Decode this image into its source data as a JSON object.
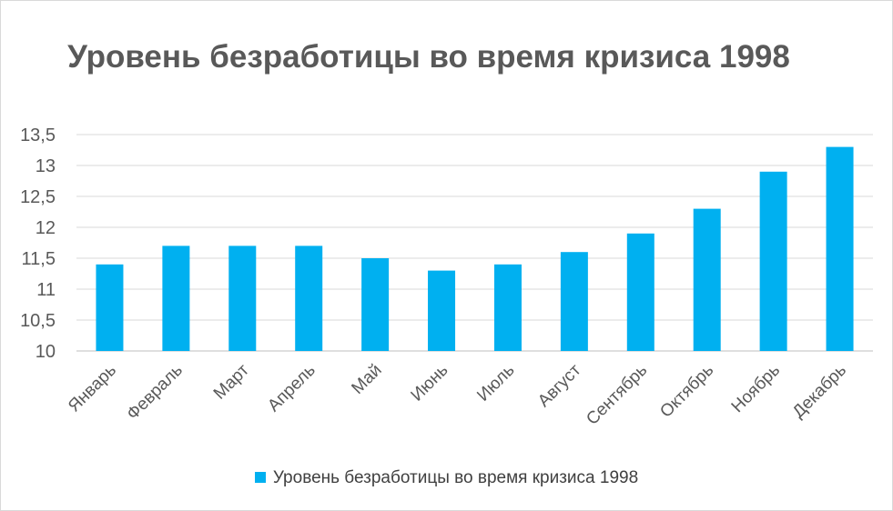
{
  "chart_data": {
    "type": "bar",
    "title": "Уровень безработицы во время кризиса 1998",
    "categories": [
      "Январь",
      "Февраль",
      "Март",
      "Апрель",
      "Май",
      "Июнь",
      "Июль",
      "Август",
      "Сентябрь",
      "Октябрь",
      "Ноябрь",
      "Декабрь"
    ],
    "series": [
      {
        "name": "Уровень безработицы во время кризиса 1998",
        "values": [
          11.4,
          11.7,
          11.7,
          11.7,
          11.5,
          11.3,
          11.4,
          11.6,
          11.9,
          12.3,
          12.9,
          13.3
        ],
        "color": "#00b0f0"
      }
    ],
    "ylim": [
      10,
      13.5
    ],
    "yticks": [
      "10",
      "10,5",
      "11",
      "11,5",
      "12",
      "12,5",
      "13",
      "13,5"
    ],
    "grid": true,
    "legend": "bottom"
  }
}
